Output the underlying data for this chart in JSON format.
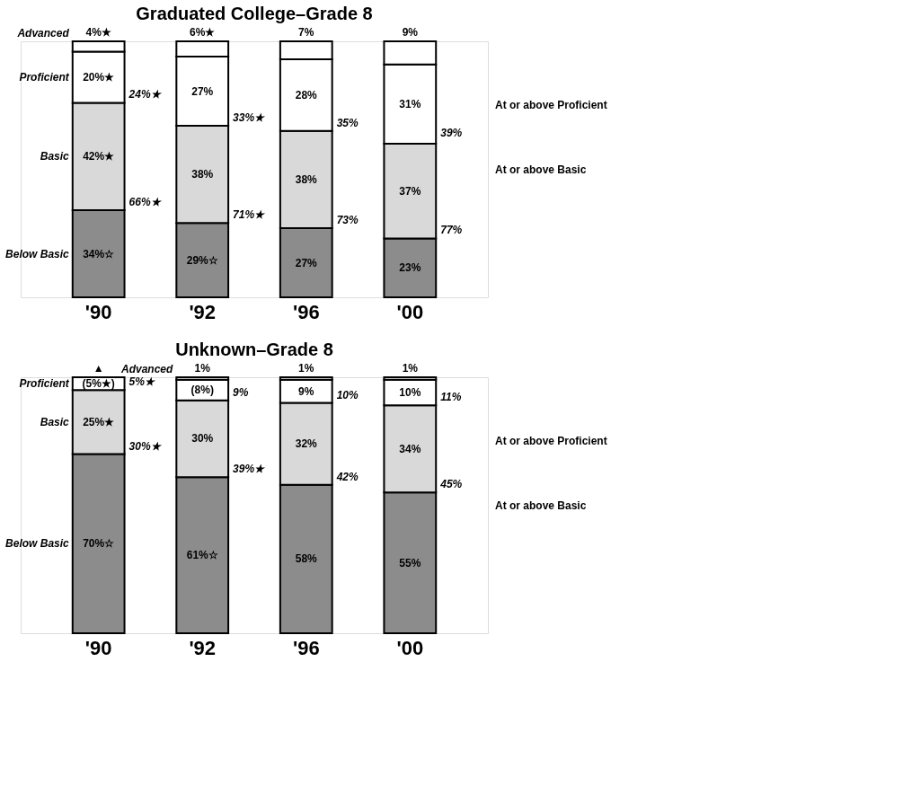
{
  "chart_data": [
    {
      "type": "bar",
      "stacked": true,
      "title": "Graduated College–Grade 8",
      "categories": [
        "'90",
        "'92",
        "'96",
        "'00"
      ],
      "ylim": [
        0,
        100
      ],
      "tick_labels": "x",
      "series": [
        {
          "name": "Below Basic",
          "color": "#8c8c8c",
          "values": [
            34,
            29,
            27,
            23
          ],
          "value_labels": [
            "34%☆",
            "29%☆",
            "27%",
            "23%"
          ]
        },
        {
          "name": "Basic",
          "color": "#d9d9d9",
          "values": [
            42,
            38,
            38,
            37
          ],
          "value_labels": [
            "42%★",
            "38%",
            "38%",
            "37%"
          ]
        },
        {
          "name": "Proficient",
          "color": "#ffffff",
          "values": [
            20,
            27,
            28,
            31
          ],
          "value_labels": [
            "20%★",
            "27%",
            "28%",
            "31%"
          ]
        },
        {
          "name": "Advanced",
          "color": "#ffffff",
          "values": [
            4,
            6,
            7,
            9
          ],
          "value_labels": [
            "4%★",
            "6%★",
            "7%",
            "9%"
          ]
        }
      ],
      "annotations": [
        {
          "text": "24%★",
          "x": "'90",
          "y": 76
        },
        {
          "text": "66%★",
          "x": "'90",
          "y": 34
        },
        {
          "text": "33%★",
          "x": "'92",
          "y": 67
        },
        {
          "text": "71%★",
          "x": "'92",
          "y": 29
        },
        {
          "text": "35%",
          "x": "'96",
          "y": 65
        },
        {
          "text": "73%",
          "x": "'96",
          "y": 27
        },
        {
          "text": "39%",
          "x": "'00",
          "y": 61
        },
        {
          "text": "77%",
          "x": "'00",
          "y": 23
        },
        "At or above Proficient",
        "At or above Basic"
      ]
    },
    {
      "type": "bar",
      "stacked": true,
      "title": "Unknown–Grade 8",
      "categories": [
        "'90",
        "'92",
        "'96",
        "'00"
      ],
      "ylim": [
        0,
        100
      ],
      "tick_labels": "x",
      "series": [
        {
          "name": "Below Basic",
          "color": "#8c8c8c",
          "values": [
            70,
            61,
            58,
            55
          ],
          "value_labels": [
            "70%☆",
            "61%☆",
            "58%",
            "55%"
          ]
        },
        {
          "name": "Basic",
          "color": "#d9d9d9",
          "values": [
            25,
            30,
            32,
            34
          ],
          "value_labels": [
            "25%★",
            "30%",
            "32%",
            "34%"
          ]
        },
        {
          "name": "Proficient",
          "color": "#ffffff",
          "values": [
            5,
            8,
            9,
            10
          ],
          "value_labels": [
            "(5%★)",
            "(8%)",
            "9%",
            "10%"
          ]
        },
        {
          "name": "Advanced",
          "color": "#ffffff",
          "values": [
            0,
            1,
            1,
            1
          ],
          "value_labels": [
            "▲",
            "1%",
            "1%",
            "1%"
          ]
        }
      ],
      "annotations": [
        {
          "text": "5%★",
          "x": "'90",
          "y": 95
        },
        {
          "text": "30%★",
          "x": "'90",
          "y": 70
        },
        {
          "text": "9%",
          "x": "'92",
          "y": 91
        },
        {
          "text": "39%★",
          "x": "'92",
          "y": 61
        },
        {
          "text": "10%",
          "x": "'96",
          "y": 90
        },
        {
          "text": "42%",
          "x": "'96",
          "y": 58
        },
        {
          "text": "11%",
          "x": "'00",
          "y": 89
        },
        {
          "text": "45%",
          "x": "'00",
          "y": 55
        },
        "At or above Proficient",
        "At or above Basic"
      ]
    }
  ]
}
